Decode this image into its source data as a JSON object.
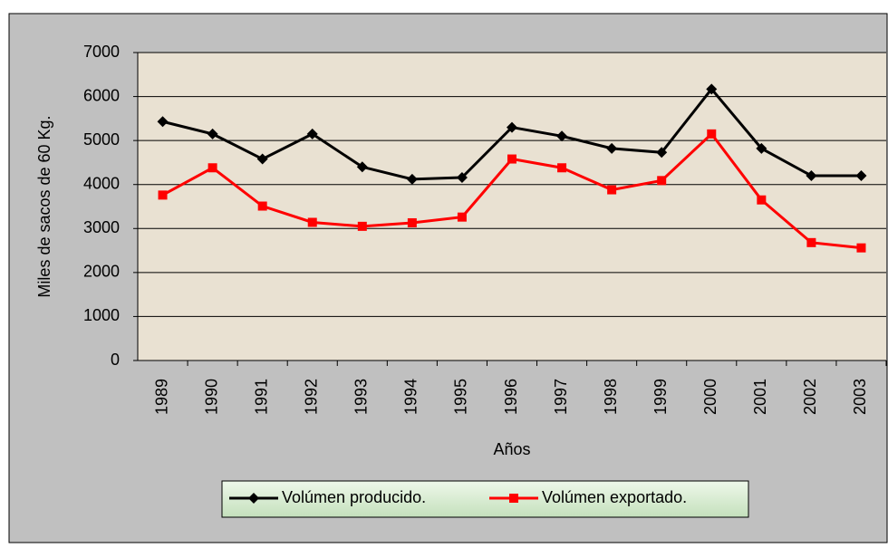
{
  "chart_data": {
    "type": "line",
    "y_label": "Miles de sacos de 60 Kg.",
    "x_label": "Años",
    "categories": [
      "1989",
      "1990",
      "1991",
      "1992",
      "1993",
      "1994",
      "1995",
      "1996",
      "1997",
      "1998",
      "1999",
      "2000",
      "2001",
      "2002",
      "2003"
    ],
    "series": [
      {
        "name": "Volúmen producido.",
        "color": "#000000",
        "marker": "diamond",
        "values": [
          5430,
          5150,
          4580,
          5150,
          4400,
          4120,
          4160,
          5300,
          5100,
          4820,
          4730,
          6170,
          4820,
          4200,
          4200
        ]
      },
      {
        "name": "Volúmen exportado.",
        "color": "#ff0000",
        "marker": "square",
        "values": [
          3760,
          4380,
          3510,
          3140,
          3050,
          3130,
          3260,
          4580,
          4380,
          3880,
          4090,
          5150,
          3650,
          2680,
          2560
        ]
      }
    ],
    "ylim": [
      0,
      7000
    ],
    "yticks": [
      0,
      1000,
      2000,
      3000,
      4000,
      5000,
      6000,
      7000
    ],
    "grid": true
  }
}
